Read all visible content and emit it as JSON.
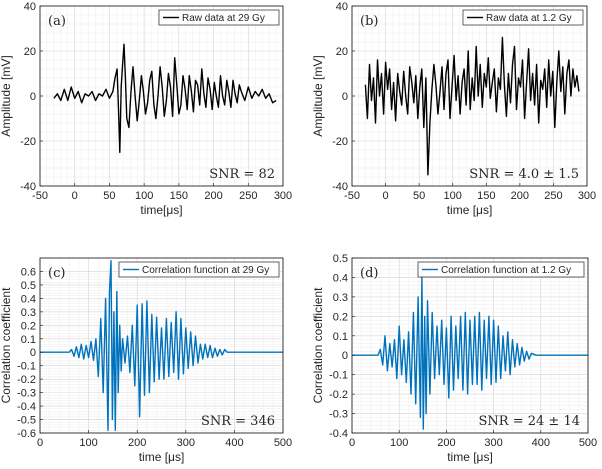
{
  "chart_data": [
    {
      "id": "a",
      "type": "line",
      "panel_label": "(a)",
      "legend": "Raw data at 29 Gy",
      "annotation": "SNR = 82",
      "xlabel": "time[μs]",
      "ylabel": "Amplitude [mV]",
      "xlim": [
        -50,
        300
      ],
      "ylim": [
        -40,
        40
      ],
      "xticks": [
        -50,
        0,
        50,
        100,
        150,
        200,
        250,
        300
      ],
      "yticks": [
        -40,
        -20,
        0,
        20,
        40
      ],
      "series_color": "#000000",
      "series": [
        {
          "name": "Raw data at 29 Gy",
          "x": [
            -30,
            -25,
            -20,
            -15,
            -10,
            -5,
            0,
            5,
            10,
            15,
            20,
            25,
            30,
            35,
            40,
            45,
            50,
            55,
            58,
            61,
            63,
            65,
            67,
            69,
            71,
            73,
            75,
            78,
            81,
            84,
            87,
            90,
            93,
            96,
            99,
            102,
            105,
            108,
            111,
            114,
            117,
            120,
            123,
            126,
            129,
            132,
            135,
            138,
            141,
            144,
            147,
            150,
            153,
            156,
            159,
            162,
            165,
            168,
            171,
            174,
            177,
            180,
            183,
            186,
            189,
            192,
            195,
            198,
            201,
            204,
            207,
            210,
            213,
            216,
            219,
            222,
            225,
            228,
            231,
            234,
            237,
            240,
            245,
            250,
            255,
            260,
            265,
            270,
            275,
            280,
            285,
            290
          ],
          "y": [
            -1,
            1,
            -2,
            3,
            -2,
            4,
            -1,
            2,
            -3,
            1,
            0,
            2,
            -2,
            1,
            0,
            3,
            -1,
            2,
            8,
            12,
            -6,
            -25,
            4,
            14,
            23,
            8,
            -10,
            -14,
            2,
            13,
            0,
            -11,
            -2,
            9,
            2,
            -8,
            -3,
            7,
            11,
            -4,
            -10,
            0,
            13,
            4,
            -9,
            -2,
            10,
            4,
            -9,
            17,
            5,
            -8,
            -4,
            9,
            3,
            -6,
            9,
            2,
            -7,
            7,
            5,
            -4,
            12,
            1,
            -5,
            8,
            3,
            -6,
            6,
            0,
            -5,
            9,
            0,
            -4,
            7,
            2,
            -5,
            7,
            1,
            -3,
            5,
            2,
            -2,
            4,
            -1,
            2,
            0,
            3,
            -1,
            1,
            -3,
            -2
          ]
        }
      ]
    },
    {
      "id": "b",
      "type": "line",
      "panel_label": "(b)",
      "legend": "Raw data at 1.2 Gy",
      "annotation": "SNR = 4.0 ± 1.5",
      "xlabel": "time [μs]",
      "ylabel": "Amplitude [mV]",
      "xlim": [
        -50,
        300
      ],
      "ylim": [
        -40,
        40
      ],
      "xticks": [
        -50,
        0,
        50,
        100,
        150,
        200,
        250,
        300
      ],
      "yticks": [
        -40,
        -20,
        0,
        20,
        40
      ],
      "series_color": "#000000",
      "series": [
        {
          "name": "Raw data at 1.2 Gy",
          "x": [
            -30,
            -27,
            -24,
            -21,
            -18,
            -15,
            -12,
            -9,
            -6,
            -3,
            0,
            3,
            6,
            9,
            12,
            15,
            18,
            21,
            24,
            27,
            30,
            33,
            36,
            39,
            42,
            45,
            48,
            51,
            54,
            57,
            60,
            63,
            66,
            69,
            72,
            75,
            78,
            81,
            84,
            87,
            90,
            93,
            96,
            99,
            102,
            105,
            108,
            111,
            114,
            117,
            120,
            123,
            126,
            129,
            132,
            135,
            138,
            141,
            144,
            147,
            150,
            153,
            156,
            159,
            162,
            165,
            168,
            171,
            174,
            177,
            180,
            183,
            186,
            189,
            192,
            195,
            198,
            201,
            204,
            207,
            210,
            213,
            216,
            219,
            222,
            225,
            228,
            231,
            234,
            237,
            240,
            243,
            246,
            249,
            252,
            255,
            258,
            261,
            264,
            267,
            270,
            273,
            276,
            279,
            282,
            285,
            288
          ],
          "y": [
            5,
            -10,
            14,
            -2,
            8,
            -12,
            16,
            0,
            10,
            -8,
            15,
            3,
            12,
            -6,
            6,
            -11,
            10,
            2,
            -4,
            11,
            0,
            -8,
            13,
            6,
            -3,
            9,
            -10,
            4,
            12,
            -14,
            8,
            -35,
            -12,
            3,
            14,
            5,
            -8,
            2,
            13,
            -6,
            10,
            16,
            -10,
            4,
            18,
            -2,
            9,
            -8,
            6,
            12,
            -4,
            20,
            -6,
            8,
            -2,
            22,
            0,
            14,
            -5,
            10,
            4,
            17,
            -1,
            6,
            12,
            -7,
            8,
            3,
            26,
            5,
            -9,
            10,
            -3,
            14,
            22,
            -6,
            8,
            4,
            16,
            -10,
            6,
            21,
            -2,
            10,
            -4,
            14,
            -12,
            7,
            3,
            12,
            -5,
            16,
            0,
            11,
            -14,
            6,
            20,
            2,
            13,
            -8,
            10,
            16,
            0,
            12,
            4,
            9,
            2
          ]
        }
      ]
    },
    {
      "id": "c",
      "type": "line",
      "panel_label": "(c)",
      "legend": "Correlation function at 29 Gy",
      "annotation": "SNR = 346",
      "xlabel": "time [μs]",
      "ylabel": "Correlation coefficient",
      "xlim": [
        0,
        500
      ],
      "ylim": [
        -0.6,
        0.7
      ],
      "xticks": [
        0,
        100,
        200,
        300,
        400,
        500
      ],
      "yticks": [
        -0.6,
        -0.5,
        -0.4,
        -0.3,
        -0.2,
        -0.1,
        0,
        0.1,
        0.2,
        0.3,
        0.4,
        0.5,
        0.6
      ],
      "series_color": "#0072bd",
      "series": [
        {
          "name": "Correlation function at 29 Gy",
          "x": [
            0,
            20,
            40,
            60,
            65,
            70,
            75,
            80,
            85,
            90,
            95,
            100,
            105,
            110,
            115,
            120,
            125,
            130,
            135,
            140,
            143,
            146,
            149,
            152,
            155,
            158,
            161,
            164,
            167,
            170,
            175,
            180,
            185,
            190,
            195,
            200,
            205,
            210,
            215,
            220,
            225,
            230,
            235,
            240,
            245,
            250,
            255,
            260,
            265,
            270,
            275,
            280,
            285,
            290,
            295,
            300,
            305,
            310,
            315,
            320,
            325,
            330,
            335,
            340,
            345,
            350,
            355,
            360,
            365,
            370,
            375,
            380,
            385,
            390,
            395,
            400,
            420,
            440,
            460,
            480,
            500
          ],
          "y": [
            0,
            0,
            0,
            0,
            0.02,
            -0.03,
            0.04,
            -0.04,
            0.06,
            -0.05,
            0.05,
            -0.04,
            0.08,
            -0.06,
            0.1,
            -0.18,
            0.25,
            -0.3,
            0.4,
            -0.58,
            0.45,
            0.68,
            -0.5,
            0.3,
            -0.58,
            0.45,
            -0.3,
            0.2,
            -0.14,
            0.1,
            -0.08,
            0.12,
            -0.15,
            0.2,
            -0.25,
            0.35,
            -0.48,
            0.36,
            -0.32,
            0.38,
            -0.3,
            0.28,
            -0.22,
            0.26,
            -0.2,
            0.18,
            -0.2,
            0.25,
            -0.18,
            0.22,
            -0.15,
            0.3,
            -0.2,
            0.25,
            -0.16,
            0.18,
            -0.12,
            0.15,
            -0.1,
            0.12,
            -0.08,
            0.06,
            -0.05,
            0.06,
            -0.04,
            0.05,
            -0.04,
            0.03,
            -0.03,
            0.02,
            -0.02,
            0.02,
            0,
            0,
            0,
            0,
            0,
            0,
            0,
            0,
            0
          ]
        }
      ]
    },
    {
      "id": "d",
      "type": "line",
      "panel_label": "(d)",
      "legend": "Correlation function at 1.2 Gy",
      "annotation": "SNR = 24 ± 14",
      "xlabel": "time [μs]",
      "ylabel": "Correlation coefficient",
      "xlim": [
        0,
        500
      ],
      "ylim": [
        -0.4,
        0.5
      ],
      "xticks": [
        0,
        100,
        200,
        300,
        400,
        500
      ],
      "yticks": [
        -0.4,
        -0.3,
        -0.2,
        -0.1,
        0,
        0.1,
        0.2,
        0.3,
        0.4,
        0.5
      ],
      "series_color": "#0072bd",
      "series": [
        {
          "name": "Correlation function at 1.2 Gy",
          "x": [
            0,
            20,
            40,
            55,
            60,
            65,
            70,
            75,
            80,
            85,
            90,
            95,
            100,
            105,
            110,
            115,
            120,
            125,
            130,
            135,
            140,
            145,
            148,
            151,
            154,
            157,
            160,
            165,
            170,
            175,
            180,
            185,
            190,
            195,
            200,
            205,
            210,
            215,
            220,
            225,
            230,
            235,
            240,
            245,
            250,
            255,
            260,
            265,
            270,
            275,
            280,
            285,
            290,
            295,
            300,
            305,
            310,
            315,
            320,
            325,
            330,
            335,
            340,
            345,
            350,
            355,
            360,
            365,
            370,
            375,
            380,
            390,
            400,
            420,
            440,
            460,
            480,
            500
          ],
          "y": [
            0,
            0,
            0,
            0,
            0.03,
            -0.05,
            0.1,
            -0.08,
            0.06,
            -0.06,
            0.08,
            -0.12,
            0.15,
            -0.1,
            0.08,
            -0.14,
            0.12,
            -0.2,
            0.22,
            -0.25,
            0.3,
            -0.32,
            0.4,
            -0.38,
            0.2,
            -0.3,
            0.28,
            -0.2,
            0.22,
            -0.12,
            0.15,
            -0.1,
            0.18,
            -0.15,
            0.14,
            -0.22,
            0.2,
            -0.18,
            0.15,
            -0.12,
            0.2,
            -0.18,
            0.22,
            -0.2,
            0.18,
            -0.15,
            0.2,
            -0.15,
            0.22,
            -0.18,
            0.18,
            -0.12,
            0.2,
            -0.15,
            0.18,
            -0.14,
            0.15,
            -0.12,
            0.1,
            -0.08,
            0.12,
            -0.1,
            0.08,
            -0.06,
            0.06,
            -0.05,
            0.04,
            -0.03,
            0.02,
            -0.02,
            0.01,
            0,
            0,
            0,
            0,
            0,
            0,
            0
          ]
        }
      ]
    }
  ]
}
